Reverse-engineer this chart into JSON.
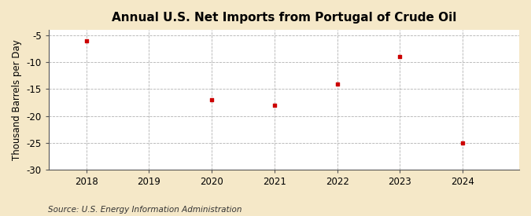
{
  "title": "Annual U.S. Net Imports from Portugal of Crude Oil",
  "ylabel": "Thousand Barrels per Day",
  "source": "Source: U.S. Energy Information Administration",
  "fig_background_color": "#f5e8c8",
  "plot_background_color": "#ffffff",
  "years": [
    2018,
    2020,
    2021,
    2022,
    2023,
    2024
  ],
  "values": [
    -6.0,
    -17.0,
    -18.0,
    -14.0,
    -9.0,
    -25.0
  ],
  "marker_color": "#cc0000",
  "xlim": [
    2017.4,
    2024.9
  ],
  "ylim": [
    -30,
    -4.0
  ],
  "yticks": [
    -5,
    -10,
    -15,
    -20,
    -25,
    -30
  ],
  "xticks": [
    2018,
    2019,
    2020,
    2021,
    2022,
    2023,
    2024
  ],
  "title_fontsize": 11,
  "label_fontsize": 8.5,
  "tick_fontsize": 8.5,
  "source_fontsize": 7.5
}
